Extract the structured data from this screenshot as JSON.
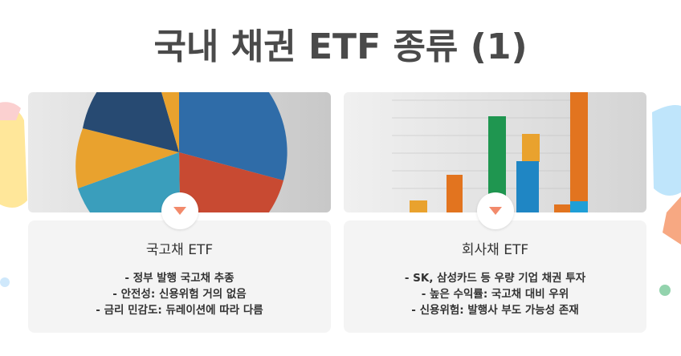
{
  "header": {
    "title": "국내 채권 ETF 종류 (1)"
  },
  "cards": [
    {
      "title": "국고채 ETF",
      "items": [
        "- 정부 발행 국고채 추종",
        "- 안전성: 신용위험 거의 없음",
        "- 금리 민감도: 듀레이션에 따라 다름"
      ]
    },
    {
      "title": "회사채 ETF",
      "items": [
        "- SK, 삼성카드 등 우량 기업 채권 투자",
        "- 높은 수익률: 국고채 대비 우위",
        "- 신용위험: 발행사 부도 가능성 존재"
      ]
    }
  ]
}
